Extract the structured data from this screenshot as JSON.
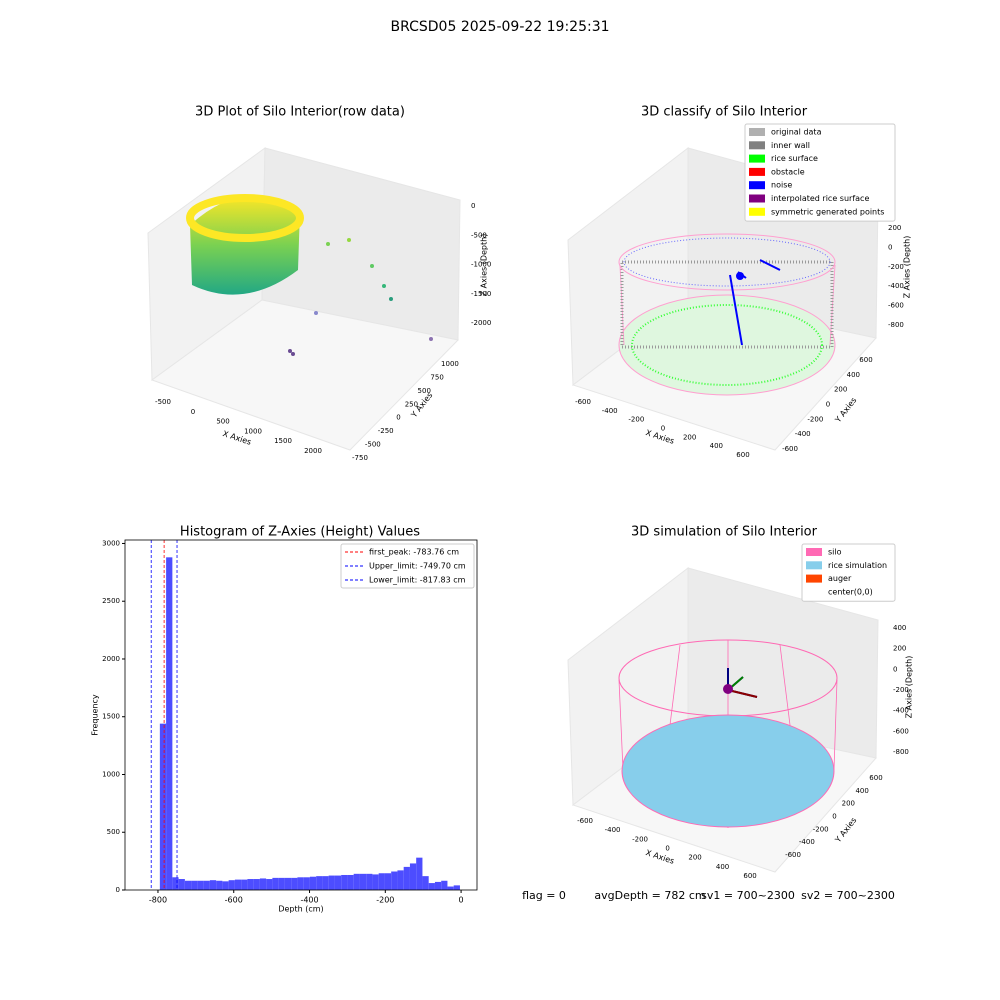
{
  "title": "BRCSD05 2025-09-22 19:25:31",
  "chart_data": [
    {
      "type": "scatter3d",
      "title": "3D Plot of Silo Interior(row data)",
      "xlabel": "X Axies",
      "ylabel": "Y Axies",
      "zlabel": "Z Axies (Depth)",
      "xlim": [
        -700,
        2200
      ],
      "xticks": [
        -500,
        0,
        500,
        1000,
        1500,
        2000
      ],
      "ylim": [
        -800,
        1100
      ],
      "yticks": [
        -750,
        -500,
        -250,
        0,
        250,
        500,
        750,
        1000
      ],
      "zlim": [
        -2300,
        100
      ],
      "zticks": [
        -2000,
        -1500,
        -1000,
        -500,
        0
      ]
    },
    {
      "type": "scatter3d",
      "title": "3D classify of Silo Interior",
      "xlabel": "X Axies",
      "ylabel": "Y Axies",
      "zlabel": "Z Axies (Depth)",
      "xlim": [
        -700,
        700
      ],
      "xticks": [
        -600,
        -400,
        -200,
        0,
        200,
        400,
        600
      ],
      "ylim": [
        -700,
        700
      ],
      "yticks": [
        -600,
        -400,
        -200,
        0,
        200,
        400,
        600
      ],
      "zlim": [
        -900,
        300
      ],
      "zticks": [
        200,
        0,
        -200,
        -400,
        -600,
        -800
      ],
      "legend": [
        {
          "name": "original data",
          "color": "#b0b0b0"
        },
        {
          "name": "inner wall",
          "color": "#808080"
        },
        {
          "name": "rice surface",
          "color": "#00ff00"
        },
        {
          "name": "obstacle",
          "color": "#ff0000"
        },
        {
          "name": "noise",
          "color": "#0000ff"
        },
        {
          "name": "interpolated rice surface",
          "color": "#800080"
        },
        {
          "name": "symmetric generated points",
          "color": "#ffff00"
        }
      ]
    },
    {
      "type": "histogram",
      "title": "Histogram of Z-Axies (Height) Values",
      "xlabel": "Depth (cm)",
      "ylabel": "Frequency",
      "color": "#4d4dff",
      "bins": [
        -795,
        -778.5,
        -762,
        -745.5,
        -729,
        -712.5,
        -696,
        -679.5,
        -663,
        -646.5,
        -630,
        -613.5,
        -597,
        -580.5,
        -564,
        -547.5,
        -531,
        -514.5,
        -498,
        -481.5,
        -465,
        -448.5,
        -432,
        -415.5,
        -399,
        -382.5,
        -366,
        -349.5,
        -333,
        -316.5,
        -300,
        -283.5,
        -267,
        -250.5,
        -234,
        -217.5,
        -201,
        -184.5,
        -168,
        -151.5,
        -135,
        -118.5,
        -102,
        -85.5,
        -69,
        -52.5,
        -36,
        -19.5,
        -3
      ],
      "values": [
        1440,
        2880,
        110,
        95,
        80,
        80,
        80,
        80,
        85,
        80,
        75,
        85,
        90,
        90,
        95,
        95,
        100,
        95,
        105,
        105,
        105,
        105,
        110,
        110,
        115,
        120,
        120,
        125,
        125,
        130,
        130,
        140,
        140,
        140,
        135,
        145,
        145,
        160,
        170,
        200,
        230,
        280,
        120,
        60,
        70,
        80,
        30,
        40
      ],
      "xlim": [
        -887,
        42
      ],
      "xticks": [
        -800,
        -600,
        -400,
        -200,
        0
      ],
      "ylim": [
        0,
        3030
      ],
      "yticks": [
        0,
        500,
        1000,
        1500,
        2000,
        2500,
        3000
      ],
      "vlines": [
        {
          "name": "first_peak: -783.76 cm",
          "value": -783.76,
          "color": "#ff0000"
        },
        {
          "name": "Upper_limit: -749.70 cm",
          "value": -749.7,
          "color": "#0000ff"
        },
        {
          "name": "Lower_limit: -817.83 cm",
          "value": -817.83,
          "color": "#0000ff"
        }
      ]
    },
    {
      "type": "scatter3d",
      "title": "3D simulation of Silo Interior",
      "xlabel": "X Axies",
      "ylabel": "Y Axies",
      "zlabel": "Z Axies (Depth)",
      "xlim": [
        -700,
        700
      ],
      "xticks": [
        -600,
        -400,
        -200,
        0,
        200,
        400,
        600
      ],
      "ylim": [
        -700,
        700
      ],
      "yticks": [
        -600,
        -400,
        -200,
        0,
        200,
        400,
        600
      ],
      "zlim": [
        -900,
        500
      ],
      "zticks": [
        400,
        200,
        0,
        -200,
        -400,
        -600,
        -800
      ],
      "legend": [
        {
          "name": "silo",
          "color": "#ff69b4"
        },
        {
          "name": "rice simulation",
          "color": "#87ceeb"
        },
        {
          "name": "auger",
          "color": "#ff4500"
        },
        {
          "name": "center(0,0)"
        }
      ]
    }
  ],
  "status": {
    "flag": "flag = 0",
    "avg_depth": "avgDepth = 782 cm",
    "sv1": "sv1 = 700~2300",
    "sv2": "sv2 = 700~2300"
  }
}
